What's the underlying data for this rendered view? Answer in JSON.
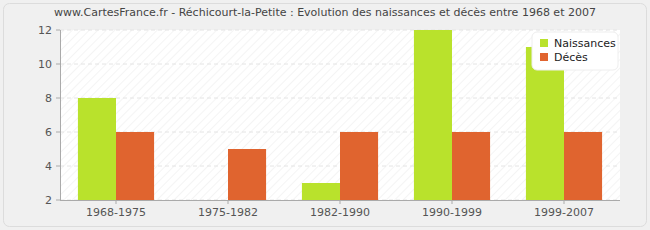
{
  "chart_data": {
    "type": "bar",
    "title": "www.CartesFrance.fr - Réchicourt-la-Petite : Evolution des naissances et décès entre 1968 et 2007",
    "categories": [
      "1968-1975",
      "1975-1982",
      "1982-1990",
      "1990-1999",
      "1999-2007"
    ],
    "series": [
      {
        "name": "Naissances",
        "color": "#b9e22c",
        "values": [
          8,
          2,
          3,
          12,
          11
        ]
      },
      {
        "name": "Décès",
        "color": "#e0642f",
        "values": [
          6,
          5,
          6,
          6,
          6
        ]
      }
    ],
    "ylim": [
      2,
      12
    ],
    "yticks": [
      2,
      4,
      6,
      8,
      10,
      12
    ],
    "grid": true,
    "legend": "top-right"
  }
}
